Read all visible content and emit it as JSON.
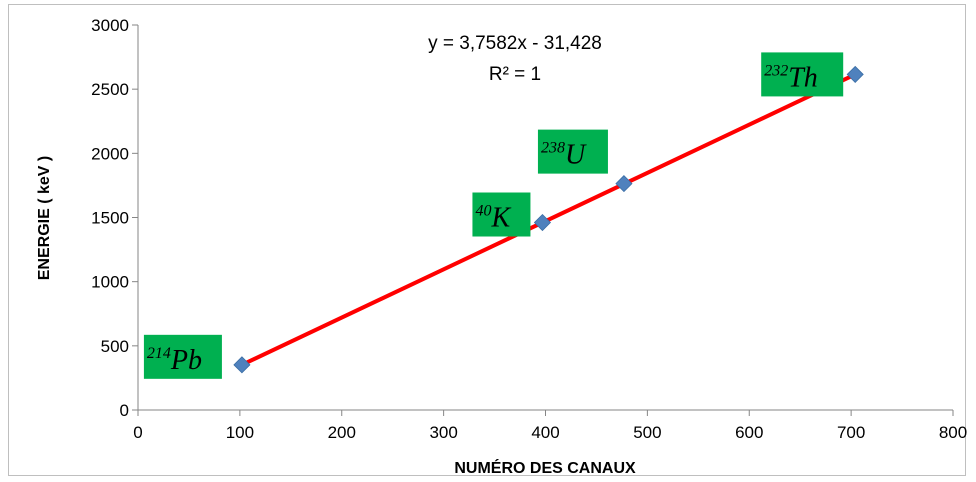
{
  "chart_data": {
    "type": "scatter",
    "xlabel": "NUMÉRO DES  CANAUX",
    "ylabel": "ENERGIE ( keV )",
    "xlim": [
      0,
      800
    ],
    "ylim": [
      0,
      3000
    ],
    "x_ticks": [
      0,
      100,
      200,
      300,
      400,
      500,
      600,
      700,
      800
    ],
    "y_ticks": [
      0,
      500,
      1000,
      1500,
      2000,
      2500,
      3000
    ],
    "grid": false,
    "points": [
      {
        "x": 102,
        "y": 352,
        "label": "214Pb",
        "label_sup": "214",
        "label_sym": "Pb"
      },
      {
        "x": 397,
        "y": 1461,
        "label": "40K",
        "label_sup": "40",
        "label_sym": "K"
      },
      {
        "x": 477,
        "y": 1764,
        "label": "238U",
        "label_sup": "238",
        "label_sym": "U"
      },
      {
        "x": 704,
        "y": 2615,
        "label": "232Th",
        "label_sup": "232",
        "label_sym": "Th"
      }
    ],
    "trendline": {
      "slope": 3.7582,
      "intercept": -31.428,
      "x_start": 102,
      "x_end": 704
    },
    "equation": "y = 3,7582x - 31,428",
    "r_squared": "R² = 1",
    "colors": {
      "marker": "#4f81bd",
      "trendline": "#ff0000",
      "label_box": "#00b050"
    }
  }
}
